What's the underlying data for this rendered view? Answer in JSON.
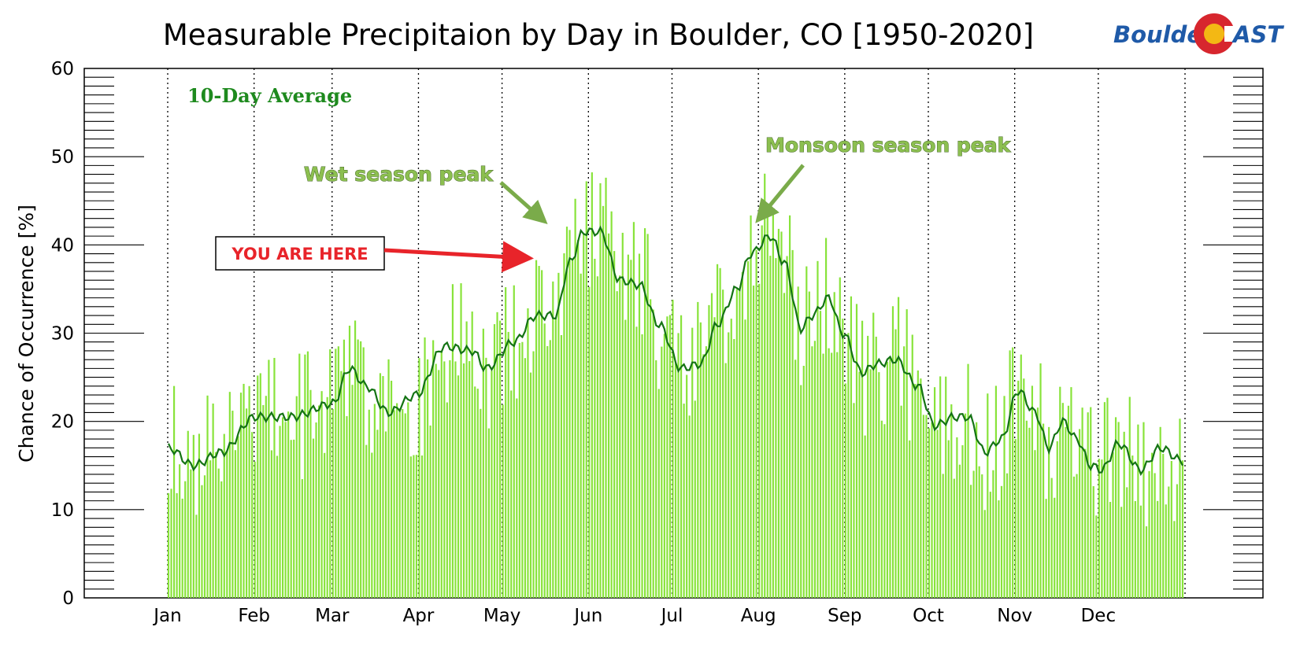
{
  "chart_data": {
    "type": "bar",
    "title": "Measurable Precipitaion by Day in Boulder, CO [1950-2020]",
    "ylabel": "Chance of Occurrence [%]",
    "xlabel": "",
    "ylim": [
      0,
      60
    ],
    "y_ticks": [
      "0",
      "10",
      "20",
      "30",
      "40",
      "50",
      "60"
    ],
    "x_tick_labels": [
      "Jan",
      "Feb",
      "Mar",
      "Apr",
      "May",
      "Jun",
      "Jul",
      "Aug",
      "Sep",
      "Oct",
      "Nov",
      "Dec"
    ],
    "month_days": [
      31,
      28,
      31,
      30,
      31,
      30,
      31,
      31,
      30,
      31,
      30,
      31
    ],
    "grid": "vertical dotted lines at month starts",
    "bar_color": "#88e33a",
    "line_color": "#147314",
    "series": [
      {
        "name": "",
        "type": "bar",
        "note": "daily chance of measurable precipitation, days 1-365"
      },
      {
        "name": "10-Day Average",
        "type": "line"
      }
    ],
    "monthly_anchor_avg": [
      {
        "day": 1,
        "value": 17
      },
      {
        "day": 10,
        "value": 15
      },
      {
        "day": 20,
        "value": 16.5
      },
      {
        "day": 32,
        "value": 20.5
      },
      {
        "day": 45,
        "value": 20.5
      },
      {
        "day": 60,
        "value": 22
      },
      {
        "day": 66,
        "value": 26
      },
      {
        "day": 72,
        "value": 24
      },
      {
        "day": 80,
        "value": 21
      },
      {
        "day": 90,
        "value": 23
      },
      {
        "day": 100,
        "value": 28.5
      },
      {
        "day": 110,
        "value": 28
      },
      {
        "day": 115,
        "value": 26
      },
      {
        "day": 125,
        "value": 29
      },
      {
        "day": 133,
        "value": 32
      },
      {
        "day": 140,
        "value": 32
      },
      {
        "day": 145,
        "value": 38
      },
      {
        "day": 150,
        "value": 41.5
      },
      {
        "day": 156,
        "value": 41.5
      },
      {
        "day": 163,
        "value": 36
      },
      {
        "day": 170,
        "value": 35.5
      },
      {
        "day": 177,
        "value": 31
      },
      {
        "day": 185,
        "value": 26
      },
      {
        "day": 192,
        "value": 26.5
      },
      {
        "day": 198,
        "value": 31
      },
      {
        "day": 205,
        "value": 35
      },
      {
        "day": 210,
        "value": 39
      },
      {
        "day": 217,
        "value": 41
      },
      {
        "day": 222,
        "value": 38
      },
      {
        "day": 228,
        "value": 30.5
      },
      {
        "day": 232,
        "value": 32
      },
      {
        "day": 238,
        "value": 34
      },
      {
        "day": 243,
        "value": 30
      },
      {
        "day": 250,
        "value": 25.5
      },
      {
        "day": 255,
        "value": 26.5
      },
      {
        "day": 262,
        "value": 27
      },
      {
        "day": 270,
        "value": 24
      },
      {
        "day": 276,
        "value": 19.5
      },
      {
        "day": 283,
        "value": 20.5
      },
      {
        "day": 288,
        "value": 20.5
      },
      {
        "day": 294,
        "value": 16.5
      },
      {
        "day": 300,
        "value": 18
      },
      {
        "day": 306,
        "value": 23.5
      },
      {
        "day": 312,
        "value": 21
      },
      {
        "day": 317,
        "value": 17
      },
      {
        "day": 322,
        "value": 20
      },
      {
        "day": 327,
        "value": 18
      },
      {
        "day": 332,
        "value": 15
      },
      {
        "day": 336,
        "value": 14.5
      },
      {
        "day": 342,
        "value": 17.5
      },
      {
        "day": 350,
        "value": 14.5
      },
      {
        "day": 357,
        "value": 17
      },
      {
        "day": 365,
        "value": 15.5
      }
    ],
    "annotations": [
      {
        "text": "10-Day Average"
      },
      {
        "text": "Wet season peak",
        "target_day": 148,
        "target_value": 42
      },
      {
        "text": "Monsoon season peak",
        "target_day": 215,
        "target_value": 42
      },
      {
        "text": "YOU ARE HERE",
        "target_day": 143,
        "target_value": 38.5
      }
    ]
  },
  "logo": {
    "text_left": "Boulder",
    "text_right": "AST",
    "colors": {
      "blue": "#1f5aa8",
      "red": "#d7262e",
      "yellow": "#f3b814"
    }
  }
}
